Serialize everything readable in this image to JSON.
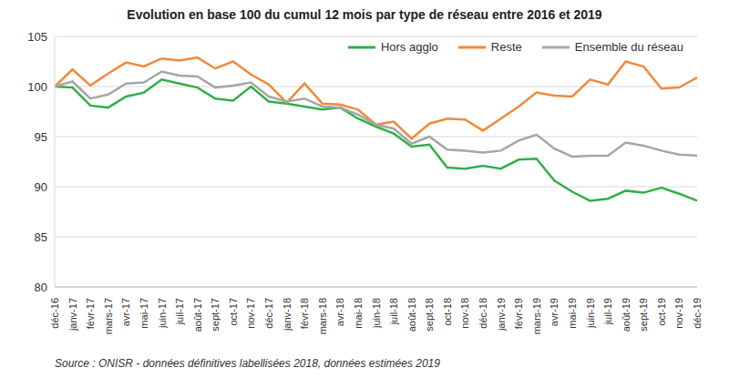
{
  "chart_data": {
    "type": "line",
    "title": "Evolution en base 100 du cumul 12 mois par type de réseau entre 2016 et 2019",
    "source": "Source : ONISR - données définitives labellisées 2018, données estimées 2019",
    "categories": [
      "déc-16",
      "janv-17",
      "févr-17",
      "mars-17",
      "avr-17",
      "mai-17",
      "juin-17",
      "juil-17",
      "août-17",
      "sept-17",
      "oct-17",
      "nov-17",
      "déc-17",
      "janv-18",
      "févr-18",
      "mars-18",
      "avr-18",
      "mai-18",
      "juin-18",
      "juil-18",
      "août-18",
      "sept-18",
      "oct-18",
      "nov-18",
      "déc-18",
      "janv-19",
      "févr-19",
      "mars-19",
      "avr-19",
      "mai-19",
      "juin-19",
      "juil-19",
      "août-19",
      "sept-19",
      "oct-19",
      "nov-19",
      "déc-19"
    ],
    "series": [
      {
        "name": "Hors agglo",
        "color": "#2fb04a",
        "values": [
          100,
          99.9,
          98.1,
          97.9,
          99.0,
          99.4,
          100.7,
          100.3,
          99.9,
          98.8,
          98.6,
          100.0,
          98.5,
          98.3,
          98.0,
          97.7,
          97.9,
          96.8,
          96.0,
          95.3,
          94.0,
          94.2,
          91.9,
          91.8,
          92.1,
          91.8,
          92.7,
          92.8,
          90.6,
          89.5,
          88.6,
          88.8,
          89.6,
          89.4,
          89.9,
          89.3,
          88.6
        ]
      },
      {
        "name": "Reste",
        "color": "#f08a3c",
        "values": [
          100,
          101.7,
          100.1,
          101.3,
          102.4,
          102.0,
          102.8,
          102.6,
          102.9,
          101.8,
          102.5,
          101.2,
          100.2,
          98.4,
          100.3,
          98.3,
          98.2,
          97.7,
          96.2,
          96.5,
          94.8,
          96.3,
          96.8,
          96.7,
          95.6,
          96.8,
          98.0,
          99.4,
          99.1,
          99.0,
          100.7,
          100.2,
          102.5,
          102.0,
          99.8,
          99.9,
          100.9
        ]
      },
      {
        "name": "Ensemble du réseau",
        "color": "#a6a6a6",
        "values": [
          100,
          100.5,
          98.8,
          99.2,
          100.3,
          100.4,
          101.5,
          101.1,
          101.0,
          99.9,
          100.1,
          100.4,
          99.0,
          98.5,
          98.8,
          98.0,
          97.9,
          97.2,
          96.2,
          95.8,
          94.3,
          95.0,
          93.7,
          93.6,
          93.4,
          93.6,
          94.6,
          95.2,
          93.8,
          93.0,
          93.1,
          93.1,
          94.4,
          94.1,
          93.6,
          93.2,
          93.1
        ]
      }
    ],
    "ylim": [
      80,
      105
    ],
    "yticks": [
      80,
      85,
      90,
      95,
      100,
      105
    ],
    "grid": true,
    "legend": "top-right"
  }
}
